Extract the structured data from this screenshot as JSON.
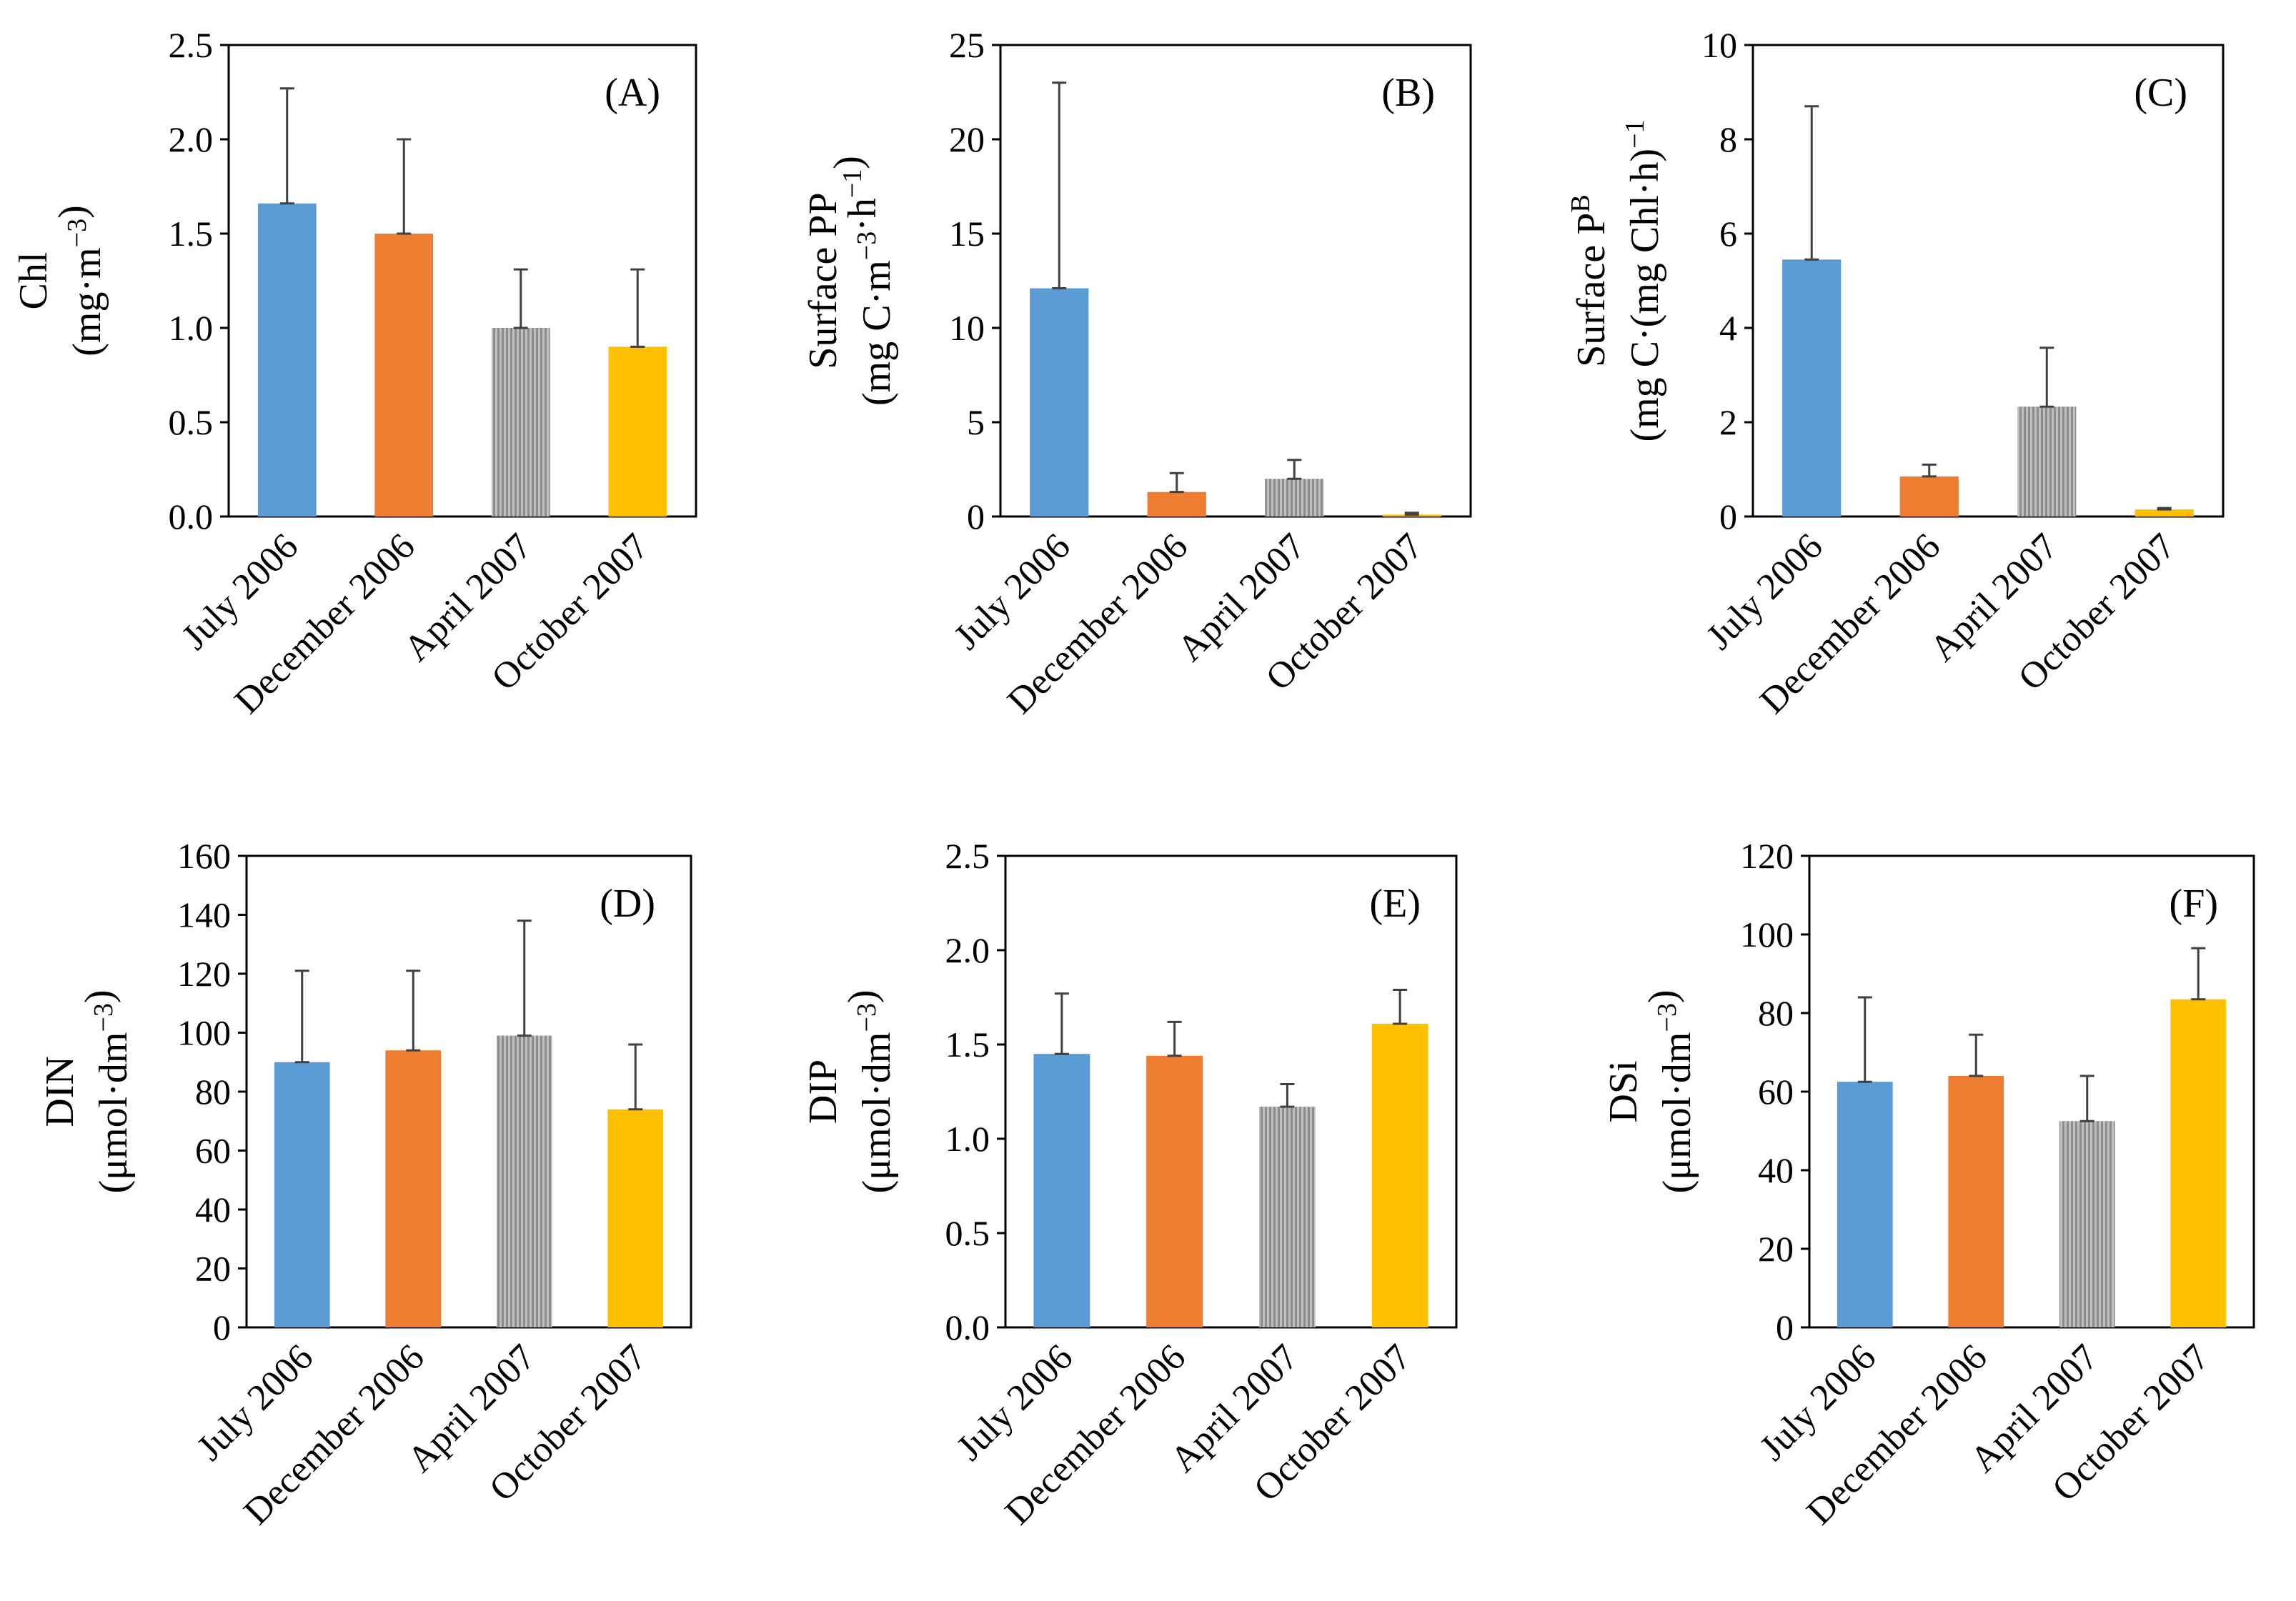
{
  "colors": {
    "july_2006": "#5B9BD5",
    "december_2006": "#ED7D31",
    "april_2007": "#A5A5A5",
    "october_2007": "#FFC000",
    "axis": "#000000",
    "error_bar": "#404040"
  },
  "chart_data": [
    {
      "type": "bar",
      "panel": "(A)",
      "categories": [
        "July 2006",
        "December 2006",
        "April 2007",
        "October 2007"
      ],
      "values": [
        1.66,
        1.5,
        1.0,
        0.9
      ],
      "errors": [
        0.61,
        0.5,
        0.31,
        0.41
      ],
      "ylabel_line1": "Chl",
      "ylabel_line2": "(mg·m",
      "ylabel_sup": "−3",
      "ylabel_tail": ")",
      "ylim": [
        0,
        2.5
      ],
      "yticks": [
        "0.0",
        "0.5",
        "1.0",
        "1.5",
        "2.0",
        "2.5"
      ]
    },
    {
      "type": "bar",
      "panel": "(B)",
      "categories": [
        "July 2006",
        "December 2006",
        "April 2007",
        "October 2007"
      ],
      "values": [
        12.1,
        1.3,
        2.0,
        0.1
      ],
      "errors": [
        10.9,
        1.0,
        1.0,
        0.1
      ],
      "ylabel_line1": "Surface PP",
      "ylabel_line2": "(mg C·m",
      "ylabel_sup": "−3",
      "ylabel_mid": "·h",
      "ylabel_sup2": "−1",
      "ylabel_tail": ")",
      "ylim": [
        0,
        25
      ],
      "yticks": [
        "0",
        "5",
        "10",
        "15",
        "20",
        "25"
      ]
    },
    {
      "type": "bar",
      "panel": "(C)",
      "categories": [
        "July 2006",
        "December 2006",
        "April 2007",
        "October 2007"
      ],
      "values": [
        5.45,
        0.85,
        2.33,
        0.15
      ],
      "errors": [
        3.25,
        0.25,
        1.25,
        0.03
      ],
      "ylabel_line1": "Surface P",
      "ylabel_sup_line1": "B",
      "ylabel_line2": "(mg C·(mg Chl·h)",
      "ylabel_sup": "−1",
      "ylabel_tail": "",
      "ylim": [
        0,
        10
      ],
      "yticks": [
        "0",
        "2",
        "4",
        "6",
        "8",
        "10"
      ]
    },
    {
      "type": "bar",
      "panel": "(D)",
      "categories": [
        "July 2006",
        "December 2006",
        "April 2007",
        "October 2007"
      ],
      "values": [
        90,
        94,
        99,
        74
      ],
      "errors": [
        31,
        27,
        39,
        22
      ],
      "ylabel_line1": "DIN",
      "ylabel_line2": "(μmol·dm",
      "ylabel_sup": "−3",
      "ylabel_tail": ")",
      "ylim": [
        0,
        160
      ],
      "yticks": [
        "0",
        "20",
        "40",
        "60",
        "80",
        "100",
        "120",
        "140",
        "160"
      ]
    },
    {
      "type": "bar",
      "panel": "(E)",
      "categories": [
        "July 2006",
        "December 2006",
        "April 2007",
        "October 2007"
      ],
      "values": [
        1.45,
        1.44,
        1.17,
        1.61
      ],
      "errors": [
        0.32,
        0.18,
        0.12,
        0.18
      ],
      "ylabel_line1": "DIP",
      "ylabel_line2": "(μmol·dm",
      "ylabel_sup": "−3",
      "ylabel_tail": ")",
      "ylim": [
        0,
        2.5
      ],
      "yticks": [
        "0.0",
        "0.5",
        "1.0",
        "1.5",
        "2.0",
        "2.5"
      ]
    },
    {
      "type": "bar",
      "panel": "(F)",
      "categories": [
        "July 2006",
        "December 2006",
        "April 2007",
        "October 2007"
      ],
      "values": [
        62.5,
        64,
        52.5,
        83.5
      ],
      "errors": [
        21.5,
        10.5,
        11.5,
        13
      ],
      "ylabel_line1": "DSi",
      "ylabel_line2": "(μmol·dm",
      "ylabel_sup": "−3",
      "ylabel_tail": ")",
      "ylim": [
        0,
        120
      ],
      "yticks": [
        "0",
        "20",
        "40",
        "60",
        "80",
        "100",
        "120"
      ]
    }
  ]
}
